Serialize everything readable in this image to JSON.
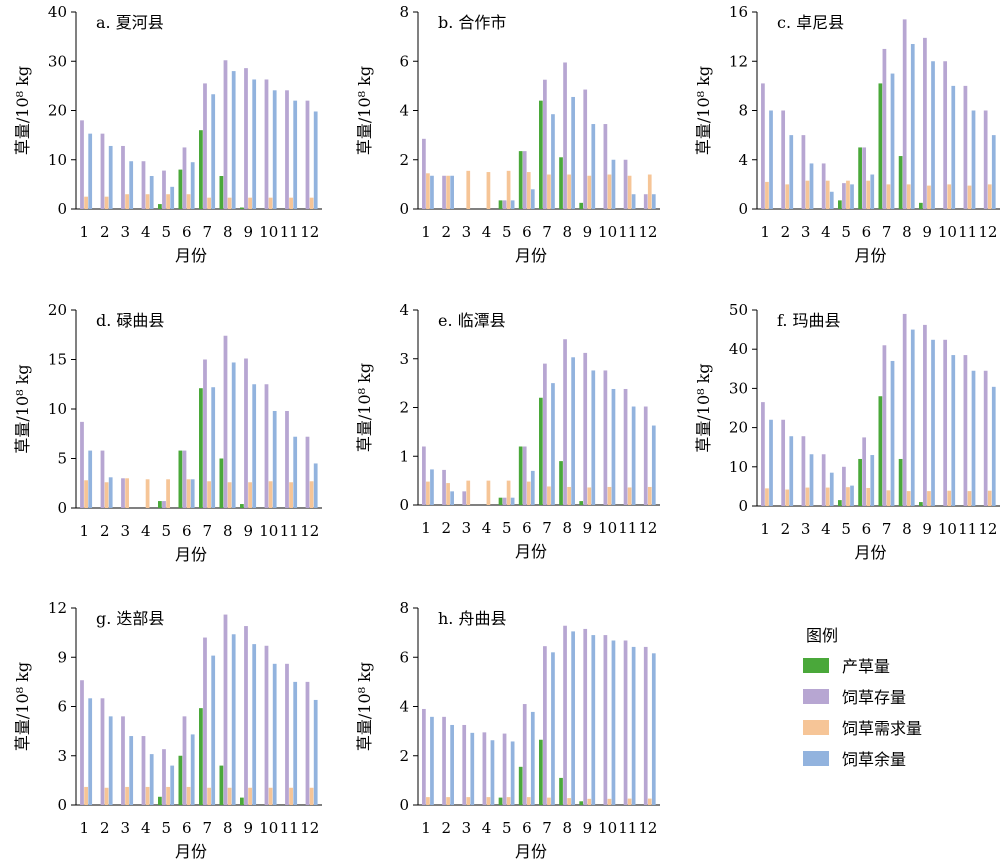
{
  "colors": {
    "production": "#4aa83a",
    "storage": "#b7a6d2",
    "demand": "#f6c597",
    "surplus": "#92b3de"
  },
  "legend": {
    "title": "图例",
    "items": [
      {
        "key": "production",
        "label": "产草量"
      },
      {
        "key": "storage",
        "label": "饲草存量"
      },
      {
        "key": "demand",
        "label": "饲草需求量"
      },
      {
        "key": "surplus",
        "label": "饲草余量"
      }
    ]
  },
  "chart_data": [
    {
      "type": "bar",
      "title": "a. 夏河县",
      "xlabel": "月份",
      "ylabel": "草量/10⁸ kg",
      "ylim": [
        0,
        40
      ],
      "yticks": [
        0,
        10,
        20,
        30,
        40
      ],
      "categories": [
        "1",
        "2",
        "3",
        "4",
        "5",
        "6",
        "7",
        "8",
        "9",
        "10",
        "11",
        "12"
      ],
      "series": [
        {
          "name": "产草量",
          "key": "production",
          "values": [
            0,
            0,
            0,
            0,
            1.0,
            8.0,
            16.0,
            6.7,
            0.3,
            0,
            0,
            0
          ]
        },
        {
          "name": "饲草存量",
          "key": "storage",
          "values": [
            18.0,
            15.3,
            12.8,
            9.7,
            7.8,
            12.5,
            25.5,
            30.2,
            28.6,
            26.3,
            24.1,
            22.0
          ]
        },
        {
          "name": "饲草需求量",
          "key": "demand",
          "values": [
            2.5,
            2.5,
            3.0,
            3.0,
            3.0,
            3.0,
            2.3,
            2.3,
            2.3,
            2.3,
            2.3,
            2.3
          ]
        },
        {
          "name": "饲草余量",
          "key": "surplus",
          "values": [
            15.3,
            12.8,
            9.7,
            6.7,
            4.5,
            9.5,
            23.3,
            28.0,
            26.3,
            24.1,
            22.0,
            19.8
          ]
        }
      ]
    },
    {
      "type": "bar",
      "title": "b. 合作市",
      "xlabel": "月份",
      "ylabel": "草量/10⁸ kg",
      "ylim": [
        0,
        8
      ],
      "yticks": [
        0,
        2,
        4,
        6,
        8
      ],
      "categories": [
        "1",
        "2",
        "3",
        "4",
        "5",
        "6",
        "7",
        "8",
        "9",
        "10",
        "11",
        "12"
      ],
      "series": [
        {
          "name": "产草量",
          "key": "production",
          "values": [
            0,
            0,
            0,
            0,
            0.35,
            2.35,
            4.4,
            2.1,
            0.25,
            0,
            0,
            0
          ]
        },
        {
          "name": "饲草存量",
          "key": "storage",
          "values": [
            2.85,
            1.35,
            0,
            0,
            0.35,
            2.35,
            5.25,
            5.95,
            4.85,
            3.45,
            2.0,
            0.6
          ]
        },
        {
          "name": "饲草需求量",
          "key": "demand",
          "values": [
            1.45,
            1.35,
            1.55,
            1.5,
            1.55,
            1.5,
            1.4,
            1.4,
            1.35,
            1.4,
            1.35,
            1.4
          ]
        },
        {
          "name": "饲草余量",
          "key": "surplus",
          "values": [
            1.35,
            1.35,
            0,
            0,
            0.35,
            0.8,
            3.85,
            4.55,
            3.45,
            2.0,
            0.6,
            0.6
          ]
        }
      ]
    },
    {
      "type": "bar",
      "title": "c. 卓尼县",
      "xlabel": "月份",
      "ylabel": "草量/10⁸ kg",
      "ylim": [
        0,
        16
      ],
      "yticks": [
        0,
        4,
        8,
        12,
        16
      ],
      "categories": [
        "1",
        "2",
        "3",
        "4",
        "5",
        "6",
        "7",
        "8",
        "9",
        "10",
        "11",
        "12"
      ],
      "series": [
        {
          "name": "产草量",
          "key": "production",
          "values": [
            0,
            0,
            0,
            0,
            0.7,
            5.0,
            10.2,
            4.3,
            0.5,
            0,
            0,
            0
          ]
        },
        {
          "name": "饲草存量",
          "key": "storage",
          "values": [
            10.2,
            8.0,
            6.0,
            3.7,
            2.1,
            5.0,
            13.0,
            15.4,
            13.9,
            12.0,
            10.0,
            8.0
          ]
        },
        {
          "name": "饲草需求量",
          "key": "demand",
          "values": [
            2.2,
            2.0,
            2.3,
            2.3,
            2.3,
            2.3,
            2.0,
            2.0,
            1.9,
            2.0,
            1.9,
            2.0
          ]
        },
        {
          "name": "饲草余量",
          "key": "surplus",
          "values": [
            8.0,
            6.0,
            3.7,
            1.4,
            2.0,
            2.8,
            11.0,
            13.4,
            12.0,
            10.0,
            8.0,
            6.0
          ]
        }
      ]
    },
    {
      "type": "bar",
      "title": "d. 碌曲县",
      "xlabel": "月份",
      "ylabel": "草量/10⁸ kg",
      "ylim": [
        0,
        20
      ],
      "yticks": [
        0,
        5,
        10,
        15,
        20
      ],
      "categories": [
        "1",
        "2",
        "3",
        "4",
        "5",
        "6",
        "7",
        "8",
        "9",
        "10",
        "11",
        "12"
      ],
      "series": [
        {
          "name": "产草量",
          "key": "production",
          "values": [
            0,
            0,
            0,
            0,
            0.7,
            5.8,
            12.1,
            5.0,
            0.4,
            0,
            0,
            0
          ]
        },
        {
          "name": "饲草存量",
          "key": "storage",
          "values": [
            8.7,
            5.8,
            3.0,
            0,
            0.7,
            5.8,
            15.0,
            17.4,
            15.1,
            12.5,
            9.8,
            7.2
          ]
        },
        {
          "name": "饲草需求量",
          "key": "demand",
          "values": [
            2.8,
            2.6,
            3.0,
            2.9,
            2.9,
            2.9,
            2.7,
            2.6,
            2.6,
            2.7,
            2.6,
            2.7
          ]
        },
        {
          "name": "饲草余量",
          "key": "surplus",
          "values": [
            5.8,
            3.1,
            0,
            0,
            0,
            2.9,
            12.2,
            14.7,
            12.5,
            9.8,
            7.2,
            4.5
          ]
        }
      ]
    },
    {
      "type": "bar",
      "title": "e. 临潭县",
      "xlabel": "月份",
      "ylabel": "草量/10⁸ kg",
      "ylim": [
        0,
        4
      ],
      "yticks": [
        0,
        1,
        2,
        3,
        4
      ],
      "categories": [
        "1",
        "2",
        "3",
        "4",
        "5",
        "6",
        "7",
        "8",
        "9",
        "10",
        "11",
        "12"
      ],
      "series": [
        {
          "name": "产草量",
          "key": "production",
          "values": [
            0,
            0,
            0,
            0,
            0.15,
            1.2,
            2.2,
            0.9,
            0.08,
            0,
            0,
            0
          ]
        },
        {
          "name": "饲草存量",
          "key": "storage",
          "values": [
            1.2,
            0.72,
            0.28,
            0,
            0.15,
            1.2,
            2.9,
            3.4,
            3.12,
            2.76,
            2.38,
            2.02
          ]
        },
        {
          "name": "饲草需求量",
          "key": "demand",
          "values": [
            0.48,
            0.45,
            0.5,
            0.5,
            0.5,
            0.48,
            0.38,
            0.37,
            0.36,
            0.37,
            0.36,
            0.37
          ]
        },
        {
          "name": "饲草余量",
          "key": "surplus",
          "values": [
            0.73,
            0.28,
            0,
            0,
            0.15,
            0.7,
            2.5,
            3.03,
            2.76,
            2.38,
            2.02,
            1.63
          ]
        }
      ]
    },
    {
      "type": "bar",
      "title": "f. 玛曲县",
      "xlabel": "月份",
      "ylabel": "草量/10⁸ kg",
      "ylim": [
        0,
        50
      ],
      "yticks": [
        0,
        10,
        20,
        30,
        40,
        50
      ],
      "categories": [
        "1",
        "2",
        "3",
        "4",
        "5",
        "6",
        "7",
        "8",
        "9",
        "10",
        "11",
        "12"
      ],
      "series": [
        {
          "name": "产草量",
          "key": "production",
          "values": [
            0,
            0,
            0,
            0,
            1.5,
            12.0,
            28.0,
            12.0,
            1.0,
            0,
            0,
            0
          ]
        },
        {
          "name": "饲草存量",
          "key": "storage",
          "values": [
            26.5,
            22.0,
            17.8,
            13.2,
            10.0,
            17.5,
            41.0,
            49.0,
            46.2,
            42.4,
            38.5,
            34.5
          ]
        },
        {
          "name": "饲草需求量",
          "key": "demand",
          "values": [
            4.5,
            4.2,
            4.7,
            4.7,
            4.8,
            4.6,
            4.0,
            3.8,
            3.8,
            3.9,
            3.8,
            3.9
          ]
        },
        {
          "name": "饲草余量",
          "key": "surplus",
          "values": [
            22.0,
            17.8,
            13.2,
            8.5,
            5.2,
            13.0,
            37.0,
            45.0,
            42.4,
            38.5,
            34.5,
            30.4
          ]
        }
      ]
    },
    {
      "type": "bar",
      "title": "g. 迭部县",
      "xlabel": "月份",
      "ylabel": "草量/10⁸ kg",
      "ylim": [
        0,
        12
      ],
      "yticks": [
        0,
        3,
        6,
        9,
        12
      ],
      "categories": [
        "1",
        "2",
        "3",
        "4",
        "5",
        "6",
        "7",
        "8",
        "9",
        "10",
        "11",
        "12"
      ],
      "series": [
        {
          "name": "产草量",
          "key": "production",
          "values": [
            0,
            0,
            0,
            0,
            0.5,
            3.0,
            5.9,
            2.4,
            0.45,
            0,
            0,
            0
          ]
        },
        {
          "name": "饲草存量",
          "key": "storage",
          "values": [
            7.6,
            6.5,
            5.4,
            4.2,
            3.4,
            5.4,
            10.2,
            11.6,
            10.9,
            9.7,
            8.6,
            7.5
          ]
        },
        {
          "name": "饲草需求量",
          "key": "demand",
          "values": [
            1.1,
            1.05,
            1.1,
            1.1,
            1.1,
            1.1,
            1.05,
            1.05,
            1.05,
            1.05,
            1.05,
            1.05
          ]
        },
        {
          "name": "饲草余量",
          "key": "surplus",
          "values": [
            6.5,
            5.4,
            4.2,
            3.1,
            2.4,
            4.3,
            9.1,
            10.4,
            9.8,
            8.6,
            7.5,
            6.4
          ]
        }
      ]
    },
    {
      "type": "bar",
      "title": "h. 舟曲县",
      "xlabel": "月份",
      "ylabel": "草量/10⁸ kg",
      "ylim": [
        0,
        8
      ],
      "yticks": [
        0,
        2,
        4,
        6,
        8
      ],
      "categories": [
        "1",
        "2",
        "3",
        "4",
        "5",
        "6",
        "7",
        "8",
        "9",
        "10",
        "11",
        "12"
      ],
      "series": [
        {
          "name": "产草量",
          "key": "production",
          "values": [
            0,
            0,
            0,
            0,
            0.3,
            1.55,
            2.65,
            1.1,
            0.15,
            0,
            0,
            0
          ]
        },
        {
          "name": "饲草存量",
          "key": "storage",
          "values": [
            3.9,
            3.58,
            3.25,
            2.95,
            2.9,
            4.1,
            6.45,
            7.28,
            7.15,
            6.9,
            6.68,
            6.42
          ]
        },
        {
          "name": "饲草需求量",
          "key": "demand",
          "values": [
            0.32,
            0.32,
            0.32,
            0.32,
            0.32,
            0.32,
            0.3,
            0.28,
            0.25,
            0.25,
            0.26,
            0.26
          ]
        },
        {
          "name": "饲草余量",
          "key": "surplus",
          "values": [
            3.58,
            3.25,
            2.93,
            2.63,
            2.58,
            3.78,
            6.2,
            7.05,
            6.9,
            6.68,
            6.42,
            6.16
          ]
        }
      ]
    }
  ]
}
